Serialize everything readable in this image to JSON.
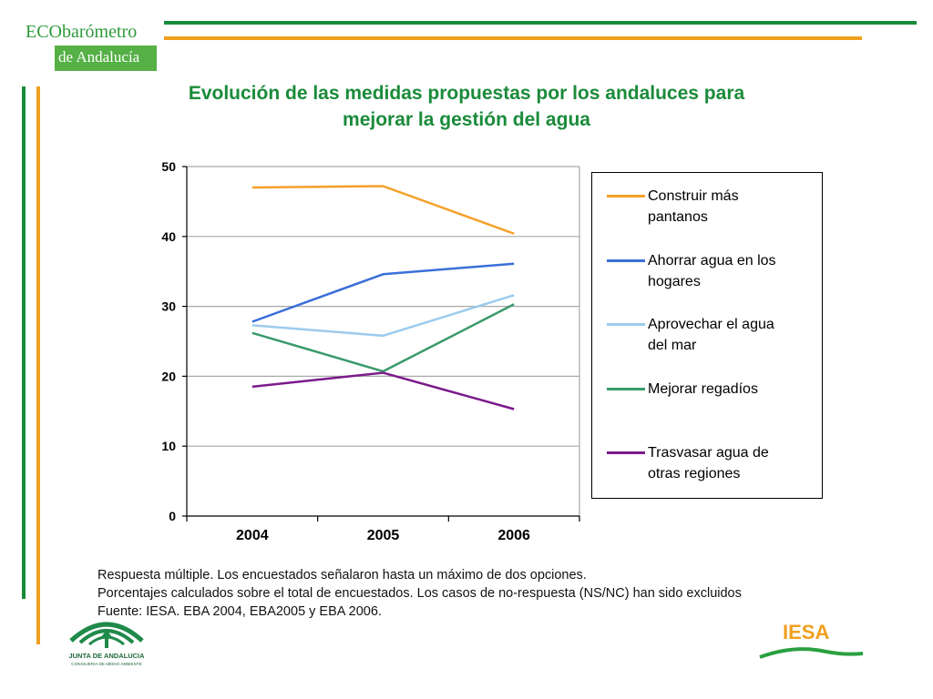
{
  "logo": {
    "text_eco": "ECO",
    "text_barometro": "barómetro",
    "text_sub": "de Andalucía"
  },
  "colors": {
    "green": "#1a8b3a",
    "orange": "#f0a01e",
    "logo_green": "#55b046"
  },
  "title_line1": "Evolución de las medidas propuestas por los andaluces para",
  "title_line2": "mejorar la gestión del agua",
  "chart_data": {
    "type": "line",
    "categories": [
      "2004",
      "2005",
      "2006"
    ],
    "ylim": [
      0,
      50
    ],
    "yticks": [
      0,
      10,
      20,
      30,
      40,
      50
    ],
    "grid": true,
    "legend_position": "right",
    "series": [
      {
        "name": "Construir más pantanos",
        "name_lines": [
          "Construir más",
          "pantanos"
        ],
        "color": "#f5a02a",
        "values": [
          47.0,
          47.2,
          40.4
        ]
      },
      {
        "name": "Ahorrar agua en los hogares",
        "name_lines": [
          "Ahorrar agua en los",
          "hogares"
        ],
        "color": "#3a6fd8",
        "values": [
          27.8,
          34.6,
          36.1
        ]
      },
      {
        "name": "Aprovechar el agua del mar",
        "name_lines": [
          "Aprovechar el agua",
          "del mar"
        ],
        "color": "#9ccbee",
        "values": [
          27.3,
          25.8,
          31.6
        ]
      },
      {
        "name": "Mejorar regadíos",
        "name_lines": [
          "Mejorar regadíos"
        ],
        "color": "#3a9a6a",
        "values": [
          26.2,
          20.7,
          30.3
        ]
      },
      {
        "name": "Trasvasar agua de otras regiones",
        "name_lines": [
          "Trasvasar agua de",
          "otras regiones"
        ],
        "color": "#7a1a8a",
        "values": [
          18.5,
          20.5,
          15.3
        ]
      }
    ]
  },
  "notes": [
    "Respuesta múltiple. Los encuestados señalaron hasta un máximo de dos opciones.",
    "Porcentajes calculados sobre el total de encuestados. Los casos de no-respuesta (NS/NC) han sido excluidos",
    "Fuente: IESA. EBA 2004, EBA2005 y EBA 2006."
  ],
  "footer": {
    "junta_line1": "JUNTA DE ANDALUCIA",
    "junta_line2": "CONSEJERIA DE MEDIO AMBIENTE",
    "iesa": "IESA"
  }
}
